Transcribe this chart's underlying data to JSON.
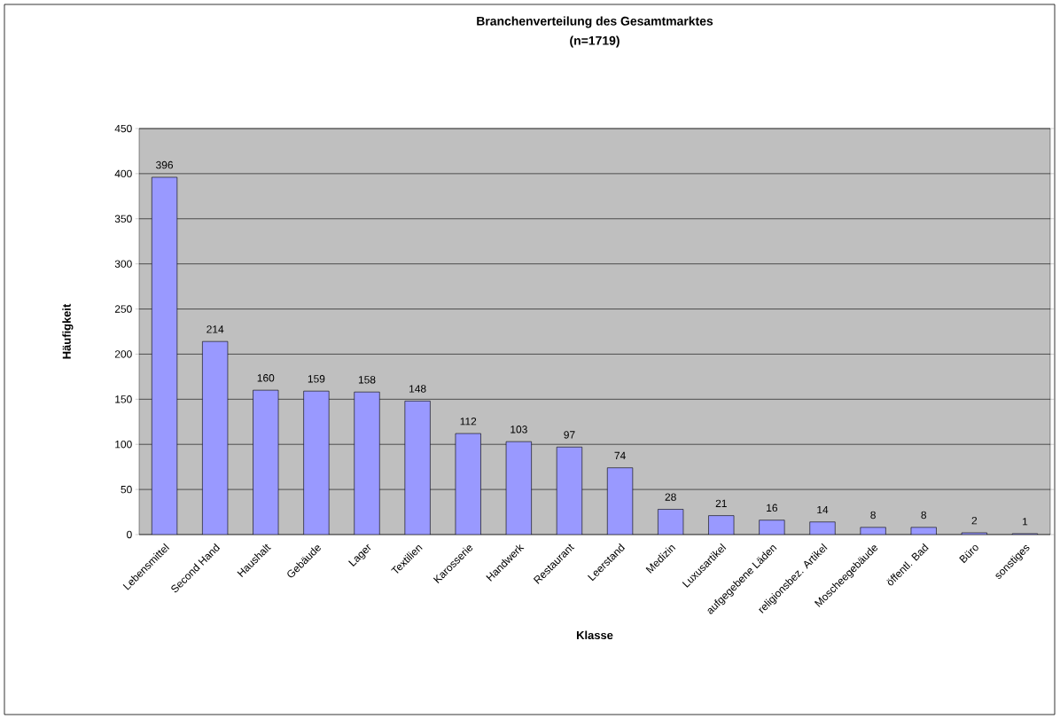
{
  "chart_data": {
    "type": "bar",
    "title": "Branchenverteilung des Gesamtmarktes",
    "subtitle": "(n=1719)",
    "xlabel": "Klasse",
    "ylabel": "Häufigkeit",
    "categories": [
      "Lebensmittel",
      "Second Hand",
      "Haushalt",
      "Gebäude",
      "Lager",
      "Textilien",
      "Karosserie",
      "Handwerk",
      "Restaurant",
      "Leerstand",
      "Medizin",
      "Luxusartikel",
      "aufgegebene Läden",
      "religionsbez. Artikel",
      "Moscheegebäude",
      "öffentl. Bad",
      "Büro",
      "sonstiges"
    ],
    "values": [
      396,
      214,
      160,
      159,
      158,
      148,
      112,
      103,
      97,
      74,
      28,
      21,
      16,
      14,
      8,
      8,
      2,
      1
    ],
    "color": "#9999ff",
    "ylim": [
      0,
      450
    ],
    "yticks": [
      0,
      50,
      100,
      150,
      200,
      250,
      300,
      350,
      400,
      450
    ],
    "grid": "y",
    "data_labels": true
  }
}
